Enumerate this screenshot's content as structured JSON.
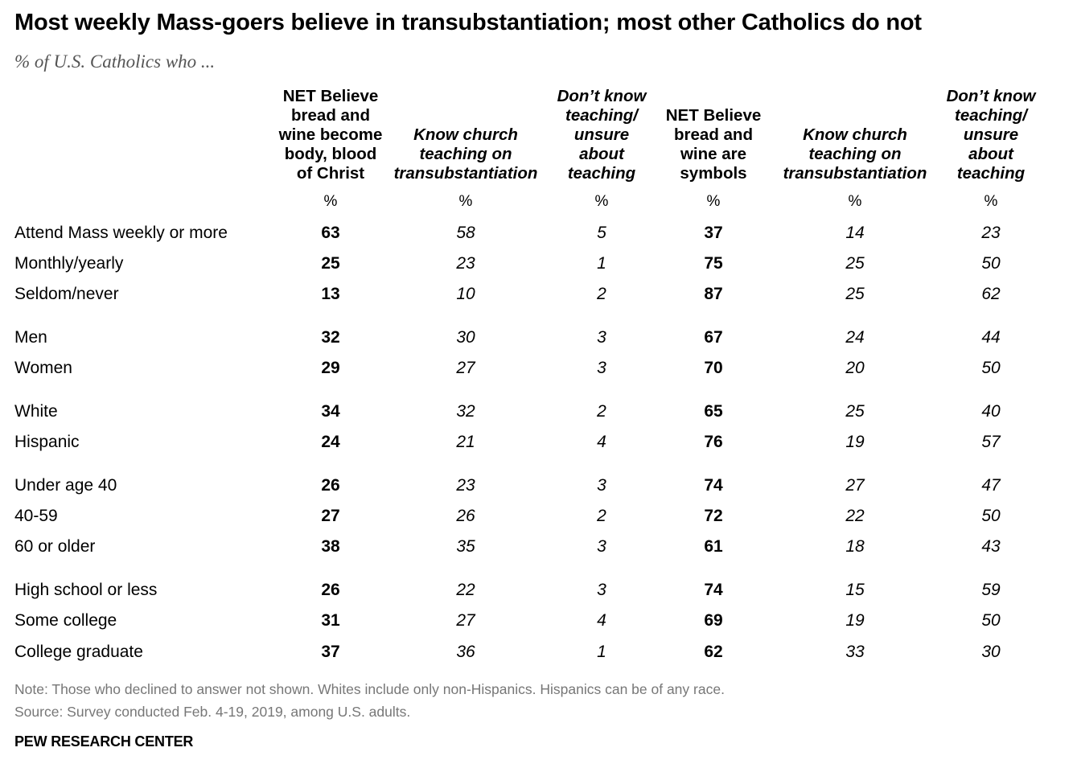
{
  "chart_data": {
    "type": "table",
    "title": "Most weekly Mass-goers believe in transubstantiation; most other Catholics do not",
    "subtitle": "% of U.S. Catholics who ...",
    "columns": [
      {
        "label": "NET Believe bread and wine become body, blood of Christ",
        "lines": [
          "NET Believe",
          "bread and",
          "wine become",
          "body, blood",
          "of Christ"
        ],
        "unit": "%"
      },
      {
        "label": "Know church teaching on transubstantiation",
        "lines": [
          "Know church",
          "teaching on",
          "transubstantiation"
        ],
        "unit": "%"
      },
      {
        "label": "Don't know teaching/ unsure about teaching",
        "lines": [
          "Don’t know",
          "teaching/",
          "unsure",
          "about",
          "teaching"
        ],
        "unit": "%"
      },
      {
        "label": "NET Believe bread and wine are symbols",
        "lines": [
          "NET Believe",
          "bread and",
          "wine are",
          "symbols"
        ],
        "unit": "%"
      },
      {
        "label": "Know church teaching on transubstantiation",
        "lines": [
          "Know church",
          "teaching on",
          "transubstantiation"
        ],
        "unit": "%"
      },
      {
        "label": "Don't know teaching/ unsure about teaching",
        "lines": [
          "Don’t know",
          "teaching/",
          "unsure",
          "about",
          "teaching"
        ],
        "unit": "%"
      }
    ],
    "rows": [
      {
        "label": "Attend Mass weekly or more",
        "values": [
          "63",
          "58",
          "5",
          "37",
          "14",
          "23"
        ]
      },
      {
        "label": "Monthly/yearly",
        "values": [
          "25",
          "23",
          "1",
          "75",
          "25",
          "50"
        ]
      },
      {
        "label": "Seldom/never",
        "values": [
          "13",
          "10",
          "2",
          "87",
          "25",
          "62"
        ]
      },
      {
        "label": "Men",
        "values": [
          "32",
          "30",
          "3",
          "67",
          "24",
          "44"
        ]
      },
      {
        "label": "Women",
        "values": [
          "29",
          "27",
          "3",
          "70",
          "20",
          "50"
        ]
      },
      {
        "label": "White",
        "values": [
          "34",
          "32",
          "2",
          "65",
          "25",
          "40"
        ]
      },
      {
        "label": "Hispanic",
        "values": [
          "24",
          "21",
          "4",
          "76",
          "19",
          "57"
        ]
      },
      {
        "label": "Under age 40",
        "values": [
          "26",
          "23",
          "3",
          "74",
          "27",
          "47"
        ]
      },
      {
        "label": "40-59",
        "values": [
          "27",
          "26",
          "2",
          "72",
          "22",
          "50"
        ]
      },
      {
        "label": "60 or older",
        "values": [
          "38",
          "35",
          "3",
          "61",
          "18",
          "43"
        ]
      },
      {
        "label": "High school or less",
        "values": [
          "26",
          "22",
          "3",
          "74",
          "15",
          "59"
        ]
      },
      {
        "label": "Some college",
        "values": [
          "31",
          "27",
          "4",
          "69",
          "19",
          "50"
        ]
      },
      {
        "label": "College graduate",
        "values": [
          "37",
          "36",
          "1",
          "62",
          "33",
          "30"
        ]
      }
    ],
    "note": "Note: Those who declined to answer not shown. Whites include only non-Hispanics. Hispanics can be of any race.",
    "source": "Source: Survey conducted Feb. 4-19, 2019, among U.S. adults.",
    "organization": "PEW RESEARCH CENTER"
  }
}
